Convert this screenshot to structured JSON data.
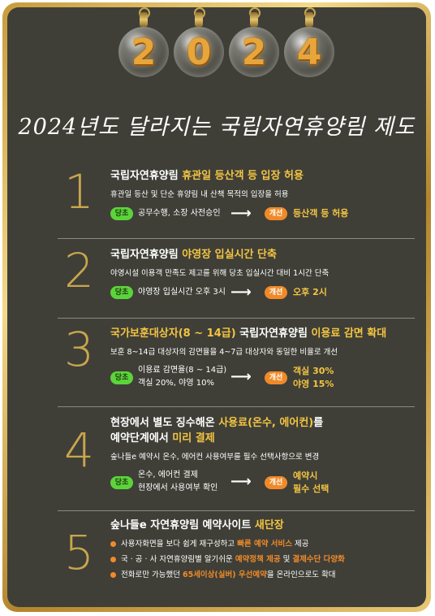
{
  "ornaments": [
    "2",
    "0",
    "2",
    "4"
  ],
  "title": "2024년도 달라지는 국립자연휴양림 제도",
  "sections": [
    {
      "number": "1",
      "heading_a": "국립자연휴양림 ",
      "heading_hl": "휴관일 등산객 등 입장 허용",
      "desc": "휴관일 등산 및 단순 휴양림 내 산책 목적의 입장을 허용",
      "current_label": "당초",
      "current_line1": "공무수행, 소장 사전승인",
      "current_line2": "",
      "arrow": "⟶",
      "new_label": "개선",
      "new_line1": "등산객 등 허용",
      "new_line2": ""
    },
    {
      "number": "2",
      "heading_a": "국립자연휴양림 ",
      "heading_hl": "야영장 입실시간 단축",
      "desc": "야영시설 이용객 만족도 제고를 위해 당초 입실시간 대비 1시간 단축",
      "current_label": "당초",
      "current_line1": "야영장 입실시간 오후 3시",
      "current_line2": "",
      "arrow": "⟶",
      "new_label": "개선",
      "new_line1": "오후 2시",
      "new_line2": ""
    },
    {
      "number": "3",
      "heading_hl1": "국가보훈대상자(8 ~ 14급)",
      "heading_a": " 국립자연휴양림 ",
      "heading_hl2": "이용료 감면 확대",
      "desc": "보훈 8~14급 대상자의 감면율을 4~7급 대상자와 동일한 비율로 개선",
      "current_label": "당초",
      "current_line1": "이용료 감면율(8 ~ 14급)",
      "current_line2": "객실 20%, 야영 10%",
      "arrow": "⟶",
      "new_label": "개선",
      "new_line1": "객실 30%",
      "new_line2": "야영 15%"
    },
    {
      "number": "4",
      "heading_a": "현장에서 별도 징수해온 ",
      "heading_hl1": "사용료(온수, 에어컨)",
      "heading_b": "를",
      "heading_c": "예약단계에서 ",
      "heading_hl2": "미리 결제",
      "desc": "숲나들e 예약시 온수, 에어컨 사용여부를 필수 선택사항으로 변경",
      "current_label": "당초",
      "current_line1": "온수, 에어컨 결제",
      "current_line2": "현장에서 사용여부 확인",
      "arrow": "⟶",
      "new_label": "개선",
      "new_line1": "예약시",
      "new_line2": "필수 선택"
    },
    {
      "number": "5",
      "heading_a": "숲나들e 자연휴양림 예약사이트 ",
      "heading_hl": "새단장",
      "bullets": [
        {
          "a": "사용자화면을 보다 쉽게 재구성하고 ",
          "hl": "빠른 예약 서비스",
          "b": " 제공",
          "hl2": "",
          "c": ""
        },
        {
          "a": "국 · 공 · 사 자연휴양림별 알기쉬운 ",
          "hl": "예약정책 제공",
          "b": " 및 ",
          "hl2": "결제수단 다양화",
          "c": ""
        },
        {
          "a": "전화로만 가능했던 ",
          "hl": "65세이상(실버) 우선예약",
          "b": "을 온라인으로도 확대",
          "hl2": "",
          "c": ""
        }
      ]
    }
  ]
}
